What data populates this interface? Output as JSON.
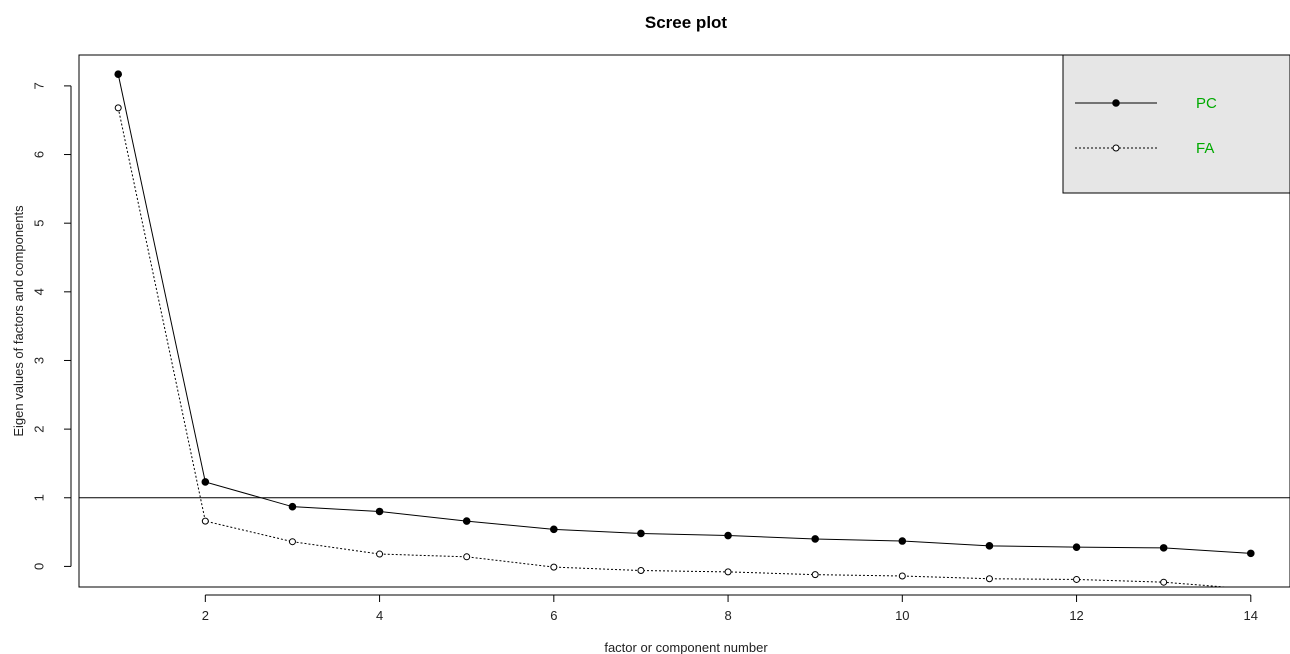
{
  "chart_data": {
    "type": "line",
    "title": "Scree plot",
    "xlabel": "factor or component number",
    "ylabel": "Eigen values of factors and components",
    "xlim": [
      0.55,
      14.45
    ],
    "ylim": [
      -0.3,
      7.45
    ],
    "x_ticks": [
      2,
      4,
      6,
      8,
      10,
      12,
      14
    ],
    "y_ticks": [
      0,
      1,
      2,
      3,
      4,
      5,
      6,
      7
    ],
    "x": [
      1,
      2,
      3,
      4,
      5,
      6,
      7,
      8,
      9,
      10,
      11,
      12,
      13,
      14
    ],
    "reference_line_y": 1,
    "grid": false,
    "legend_placement": "top-right",
    "legend_text_color": "#00aa00",
    "legend_background": "#e6e6e6",
    "series": [
      {
        "name": "PC",
        "line_style": "solid",
        "marker": "filled-circle",
        "values": [
          7.17,
          1.23,
          0.87,
          0.8,
          0.66,
          0.54,
          0.48,
          0.45,
          0.4,
          0.37,
          0.3,
          0.28,
          0.27,
          0.19
        ]
      },
      {
        "name": "FA",
        "line_style": "dotted",
        "marker": "open-circle",
        "values": [
          6.68,
          0.66,
          0.36,
          0.18,
          0.14,
          -0.01,
          -0.06,
          -0.08,
          -0.12,
          -0.14,
          -0.18,
          -0.19,
          -0.23,
          -0.33
        ]
      }
    ]
  }
}
